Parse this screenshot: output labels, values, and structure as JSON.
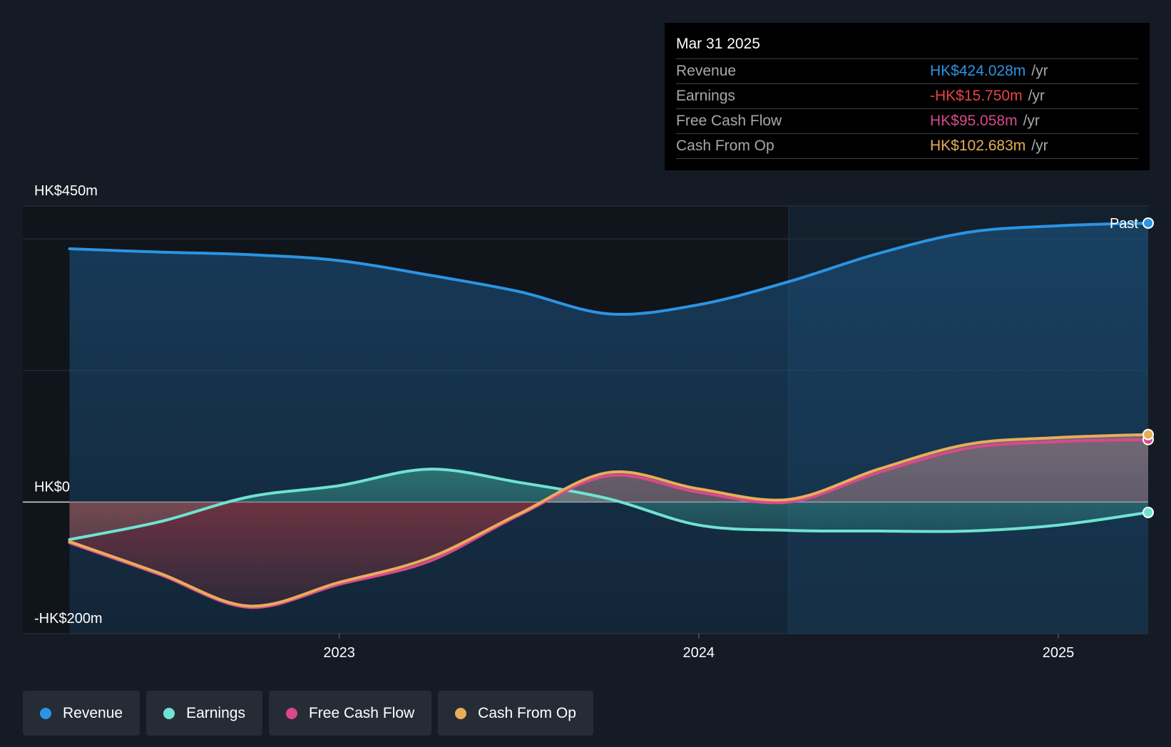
{
  "chart_data": {
    "type": "area",
    "title": "",
    "y_unit": "HK$m",
    "ylim": [
      -200,
      450
    ],
    "y_tick_labels": [
      {
        "value": 450,
        "label": "HK$450m"
      },
      {
        "value": 0,
        "label": "HK$0"
      },
      {
        "value": -200,
        "label": "-HK$200m"
      }
    ],
    "xlim": [
      2022.12,
      2025.25
    ],
    "x_tick_labels": [
      {
        "value": 2023.0,
        "label": "2023"
      },
      {
        "value": 2024.0,
        "label": "2024"
      },
      {
        "value": 2025.0,
        "label": "2025"
      }
    ],
    "past_start": 2024.25,
    "past_label": "Past",
    "x": [
      2022.25,
      2022.5,
      2022.75,
      2023.0,
      2023.25,
      2023.5,
      2023.75,
      2024.0,
      2024.25,
      2024.5,
      2024.75,
      2025.0,
      2025.25
    ],
    "series": [
      {
        "name": "Revenue",
        "color": "#2b94e3",
        "values": [
          385,
          380,
          376,
          367,
          345,
          320,
          286,
          300,
          335,
          378,
          410,
          420,
          424
        ]
      },
      {
        "name": "Earnings",
        "color": "#6fe3d2",
        "values": [
          -57,
          -30,
          8,
          25,
          50,
          30,
          5,
          -35,
          -43,
          -44,
          -44,
          -35,
          -15.75
        ]
      },
      {
        "name": "Free Cash Flow",
        "color": "#d9498b",
        "values": [
          -62,
          -110,
          -160,
          -125,
          -90,
          -20,
          40,
          15,
          0,
          45,
          82,
          92,
          95.058
        ]
      },
      {
        "name": "Cash From Op",
        "color": "#e8ad5a",
        "values": [
          -60,
          -108,
          -158,
          -122,
          -85,
          -18,
          45,
          20,
          4,
          50,
          88,
          98,
          102.683
        ]
      }
    ]
  },
  "tooltip": {
    "date": "Mar 31 2025",
    "rows": [
      {
        "name": "Revenue",
        "value": "HK$424.028m",
        "unit": "/yr",
        "color": "#2b94e3"
      },
      {
        "name": "Earnings",
        "value": "-HK$15.750m",
        "unit": "/yr",
        "color": "#e64545"
      },
      {
        "name": "Free Cash Flow",
        "value": "HK$95.058m",
        "unit": "/yr",
        "color": "#d9498b"
      },
      {
        "name": "Cash From Op",
        "value": "HK$102.683m",
        "unit": "/yr",
        "color": "#e8ad5a"
      }
    ]
  },
  "legend": [
    {
      "label": "Revenue",
      "color": "#2b94e3"
    },
    {
      "label": "Earnings",
      "color": "#6fe3d2"
    },
    {
      "label": "Free Cash Flow",
      "color": "#d9498b"
    },
    {
      "label": "Cash From Op",
      "color": "#e8ad5a"
    }
  ]
}
